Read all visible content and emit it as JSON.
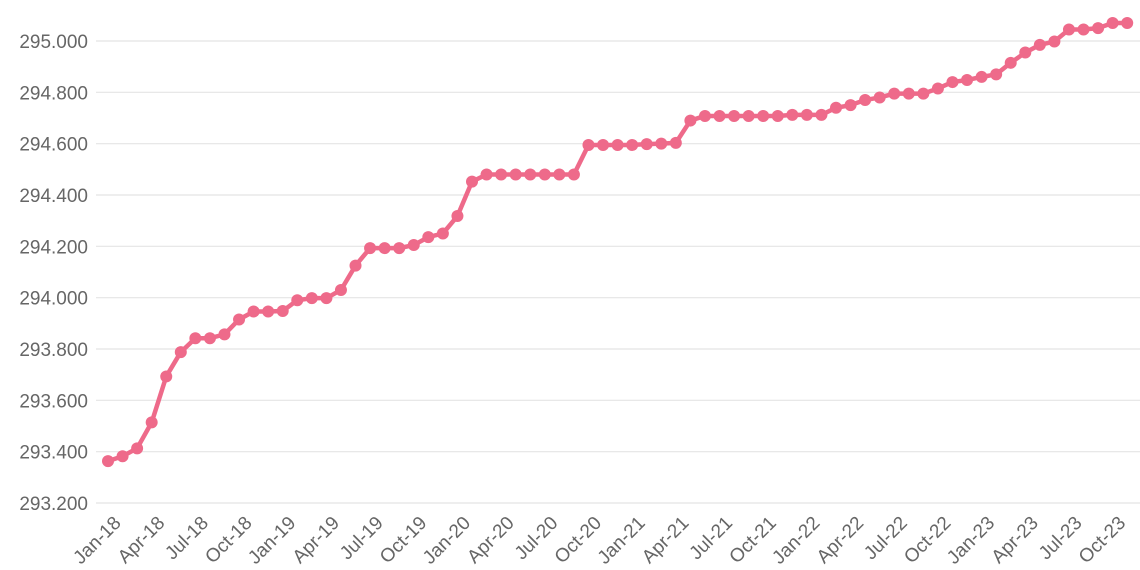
{
  "chart_data": {
    "type": "line",
    "title": "",
    "xlabel": "",
    "ylabel": "",
    "ylim": [
      293.2,
      295.0
    ],
    "y_ticks": [
      "293.200",
      "293.400",
      "293.600",
      "293.800",
      "294.000",
      "294.200",
      "294.400",
      "294.600",
      "294.800",
      "295.000"
    ],
    "y_tick_values": [
      293.2,
      293.4,
      293.6,
      293.8,
      294.0,
      294.2,
      294.4,
      294.6,
      294.8,
      295.0
    ],
    "x_tick_labels": [
      "Jan-18",
      "Apr-18",
      "Jul-18",
      "Oct-18",
      "Jan-19",
      "Apr-19",
      "Jul-19",
      "Oct-19",
      "Jan-20",
      "Apr-20",
      "Jul-20",
      "Oct-20",
      "Jan-21",
      "Apr-21",
      "Jul-21",
      "Oct-21",
      "Jan-22",
      "Apr-22",
      "Jul-22",
      "Oct-22",
      "Jan-23",
      "Apr-23",
      "Jul-23",
      "Oct-23"
    ],
    "grid": true,
    "color": "#ee6a8a",
    "series": [
      {
        "x": [
          "Jan-18",
          "Feb-18",
          "Mar-18",
          "Apr-18",
          "May-18",
          "Jun-18",
          "Jul-18",
          "Aug-18",
          "Sep-18",
          "Oct-18",
          "Nov-18",
          "Dec-18",
          "Jan-19",
          "Feb-19",
          "Mar-19",
          "Apr-19",
          "May-19",
          "Jun-19",
          "Jul-19",
          "Aug-19",
          "Sep-19",
          "Oct-19",
          "Nov-19",
          "Dec-19",
          "Jan-20",
          "Feb-20",
          "Mar-20",
          "Apr-20",
          "May-20",
          "Jun-20",
          "Jul-20",
          "Aug-20",
          "Sep-20",
          "Oct-20",
          "Nov-20",
          "Dec-20",
          "Jan-21",
          "Feb-21",
          "Mar-21",
          "Apr-21",
          "May-21",
          "Jun-21",
          "Jul-21",
          "Aug-21",
          "Sep-21",
          "Oct-21",
          "Nov-21",
          "Dec-21",
          "Jan-22",
          "Feb-22",
          "Mar-22",
          "Apr-22",
          "May-22",
          "Jun-22",
          "Jul-22",
          "Aug-22",
          "Sep-22",
          "Oct-22",
          "Nov-22",
          "Dec-22",
          "Jan-23",
          "Feb-23",
          "Mar-23",
          "Apr-23",
          "May-23",
          "Jun-23",
          "Jul-23",
          "Aug-23",
          "Sep-23",
          "Oct-23",
          "Nov-23"
        ],
        "values": [
          293.363,
          293.382,
          293.413,
          293.514,
          293.693,
          293.788,
          293.842,
          293.842,
          293.857,
          293.915,
          293.946,
          293.946,
          293.948,
          293.99,
          293.998,
          293.998,
          294.03,
          294.125,
          294.193,
          294.193,
          294.193,
          294.205,
          294.236,
          294.25,
          294.318,
          294.452,
          294.48,
          294.48,
          294.48,
          294.48,
          294.48,
          294.48,
          294.48,
          294.595,
          294.595,
          294.595,
          294.595,
          294.598,
          294.6,
          294.603,
          294.69,
          294.708,
          294.708,
          294.708,
          294.708,
          294.708,
          294.708,
          294.712,
          294.712,
          294.712,
          294.74,
          294.75,
          294.77,
          294.78,
          294.795,
          294.795,
          294.795,
          294.815,
          294.84,
          294.848,
          294.86,
          294.87,
          294.915,
          294.955,
          294.985,
          294.998,
          295.045,
          295.045,
          295.05,
          295.07,
          295.07
        ]
      }
    ]
  }
}
